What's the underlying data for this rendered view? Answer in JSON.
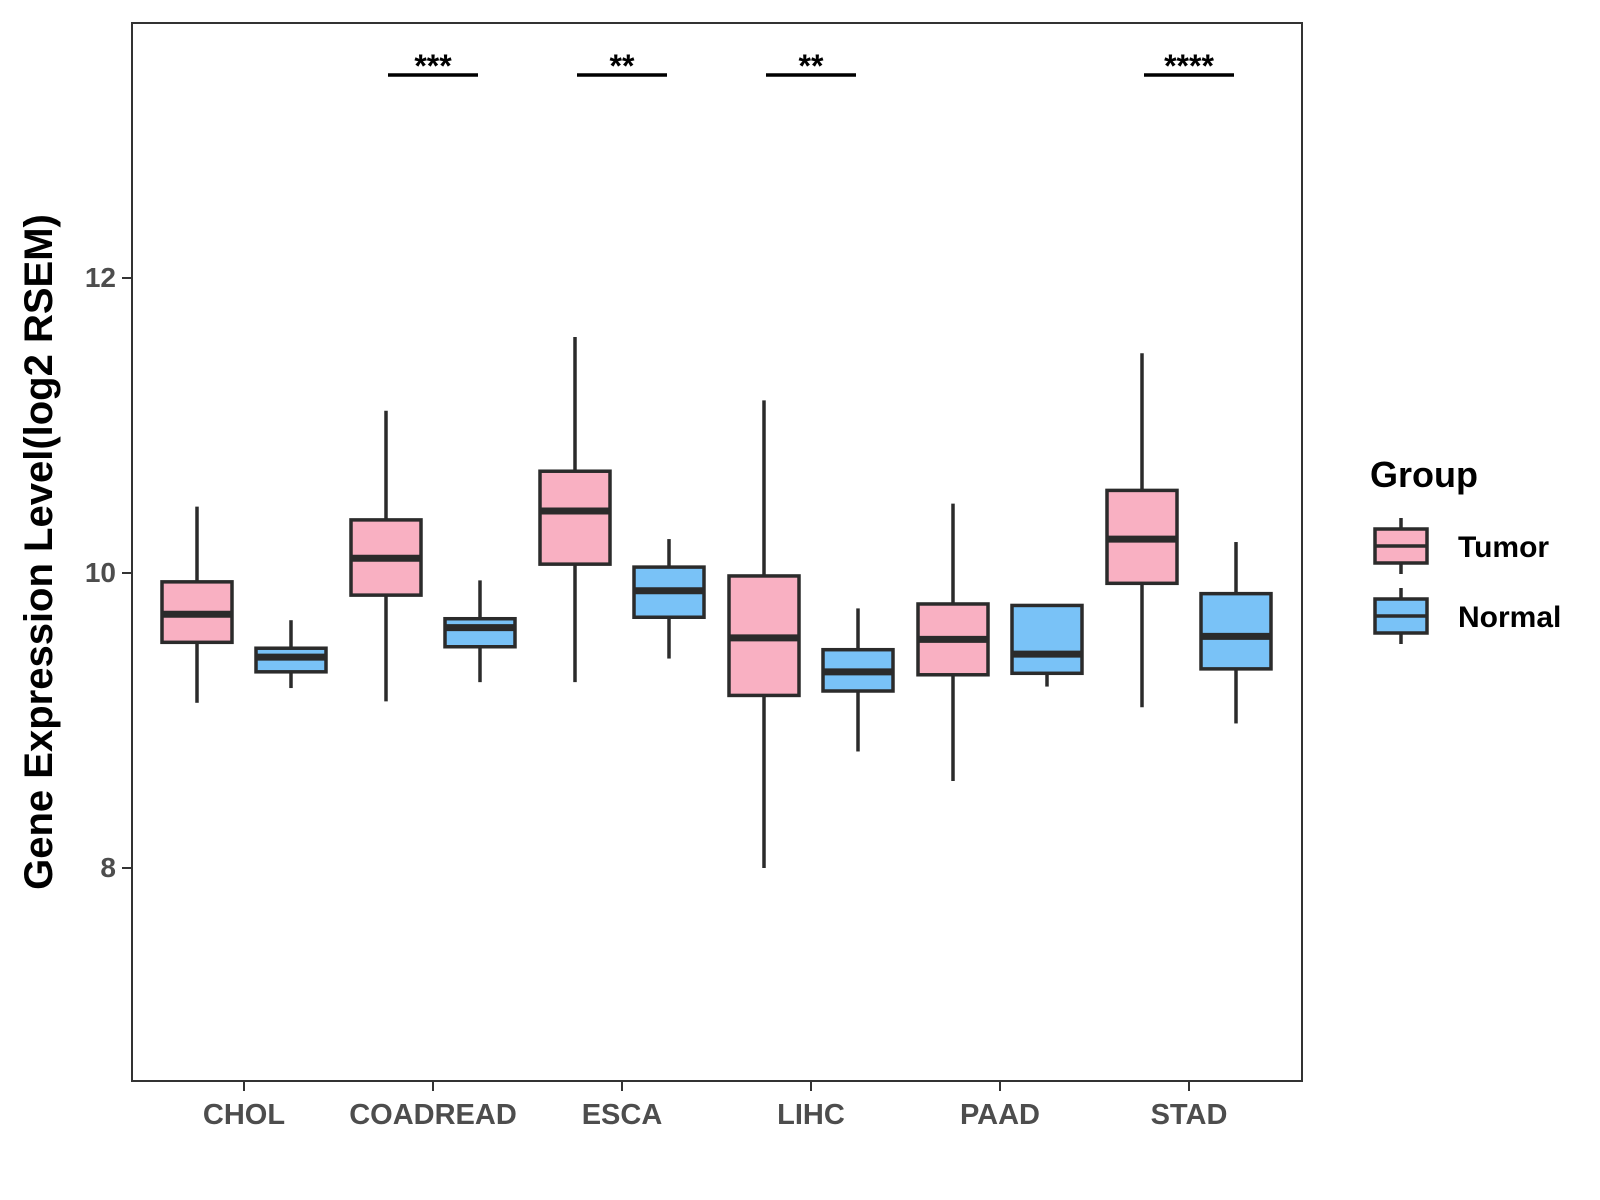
{
  "chart_data": {
    "type": "boxplot",
    "title": "",
    "xlabel": "",
    "ylabel": "Gene Expression Level(log2 RSEM)",
    "ylim": [
      6.55,
      13.75
    ],
    "yticks": [
      8,
      10,
      12
    ],
    "grid": false,
    "legend": {
      "title": "Group",
      "position": "right",
      "entries": [
        {
          "name": "Tumor",
          "color": "#F9B0C2"
        },
        {
          "name": "Normal",
          "color": "#79C2F7"
        }
      ]
    },
    "categories": [
      "CHOL",
      "COADREAD",
      "ESCA",
      "LIHC",
      "PAAD",
      "STAD"
    ],
    "series": [
      {
        "name": "Tumor",
        "color": "#F9B0C2",
        "boxes": [
          {
            "category": "CHOL",
            "min": 9.12,
            "q1": 9.53,
            "median": 9.72,
            "q3": 9.94,
            "max": 10.45
          },
          {
            "category": "COADREAD",
            "min": 9.13,
            "q1": 9.85,
            "median": 10.1,
            "q3": 10.36,
            "max": 11.1
          },
          {
            "category": "ESCA",
            "min": 9.26,
            "q1": 10.06,
            "median": 10.42,
            "q3": 10.69,
            "max": 11.6
          },
          {
            "category": "LIHC",
            "min": 8.0,
            "q1": 9.17,
            "median": 9.56,
            "q3": 9.98,
            "max": 11.17
          },
          {
            "category": "PAAD",
            "min": 8.59,
            "q1": 9.31,
            "median": 9.55,
            "q3": 9.79,
            "max": 10.47
          },
          {
            "category": "STAD",
            "min": 9.09,
            "q1": 9.93,
            "median": 10.23,
            "q3": 10.56,
            "max": 11.49
          }
        ]
      },
      {
        "name": "Normal",
        "color": "#79C2F7",
        "boxes": [
          {
            "category": "CHOL",
            "min": 9.22,
            "q1": 9.33,
            "median": 9.43,
            "q3": 9.49,
            "max": 9.68
          },
          {
            "category": "COADREAD",
            "min": 9.26,
            "q1": 9.5,
            "median": 9.63,
            "q3": 9.69,
            "max": 9.95
          },
          {
            "category": "ESCA",
            "min": 9.42,
            "q1": 9.7,
            "median": 9.88,
            "q3": 10.04,
            "max": 10.23
          },
          {
            "category": "LIHC",
            "min": 8.79,
            "q1": 9.2,
            "median": 9.33,
            "q3": 9.48,
            "max": 9.76
          },
          {
            "category": "PAAD",
            "min": 9.23,
            "q1": 9.32,
            "median": 9.45,
            "q3": 9.78,
            "max": 9.78
          },
          {
            "category": "STAD",
            "min": 8.98,
            "q1": 9.35,
            "median": 9.57,
            "q3": 9.86,
            "max": 10.21
          }
        ]
      }
    ],
    "significance": [
      {
        "category": "COADREAD",
        "label": "***"
      },
      {
        "category": "ESCA",
        "label": "**"
      },
      {
        "category": "LIHC",
        "label": "**"
      },
      {
        "category": "STAD",
        "label": "****"
      }
    ],
    "colors": {
      "axis": "#333333",
      "box_stroke": "#2b2b2b",
      "tick_text": "#4d4d4d"
    }
  }
}
